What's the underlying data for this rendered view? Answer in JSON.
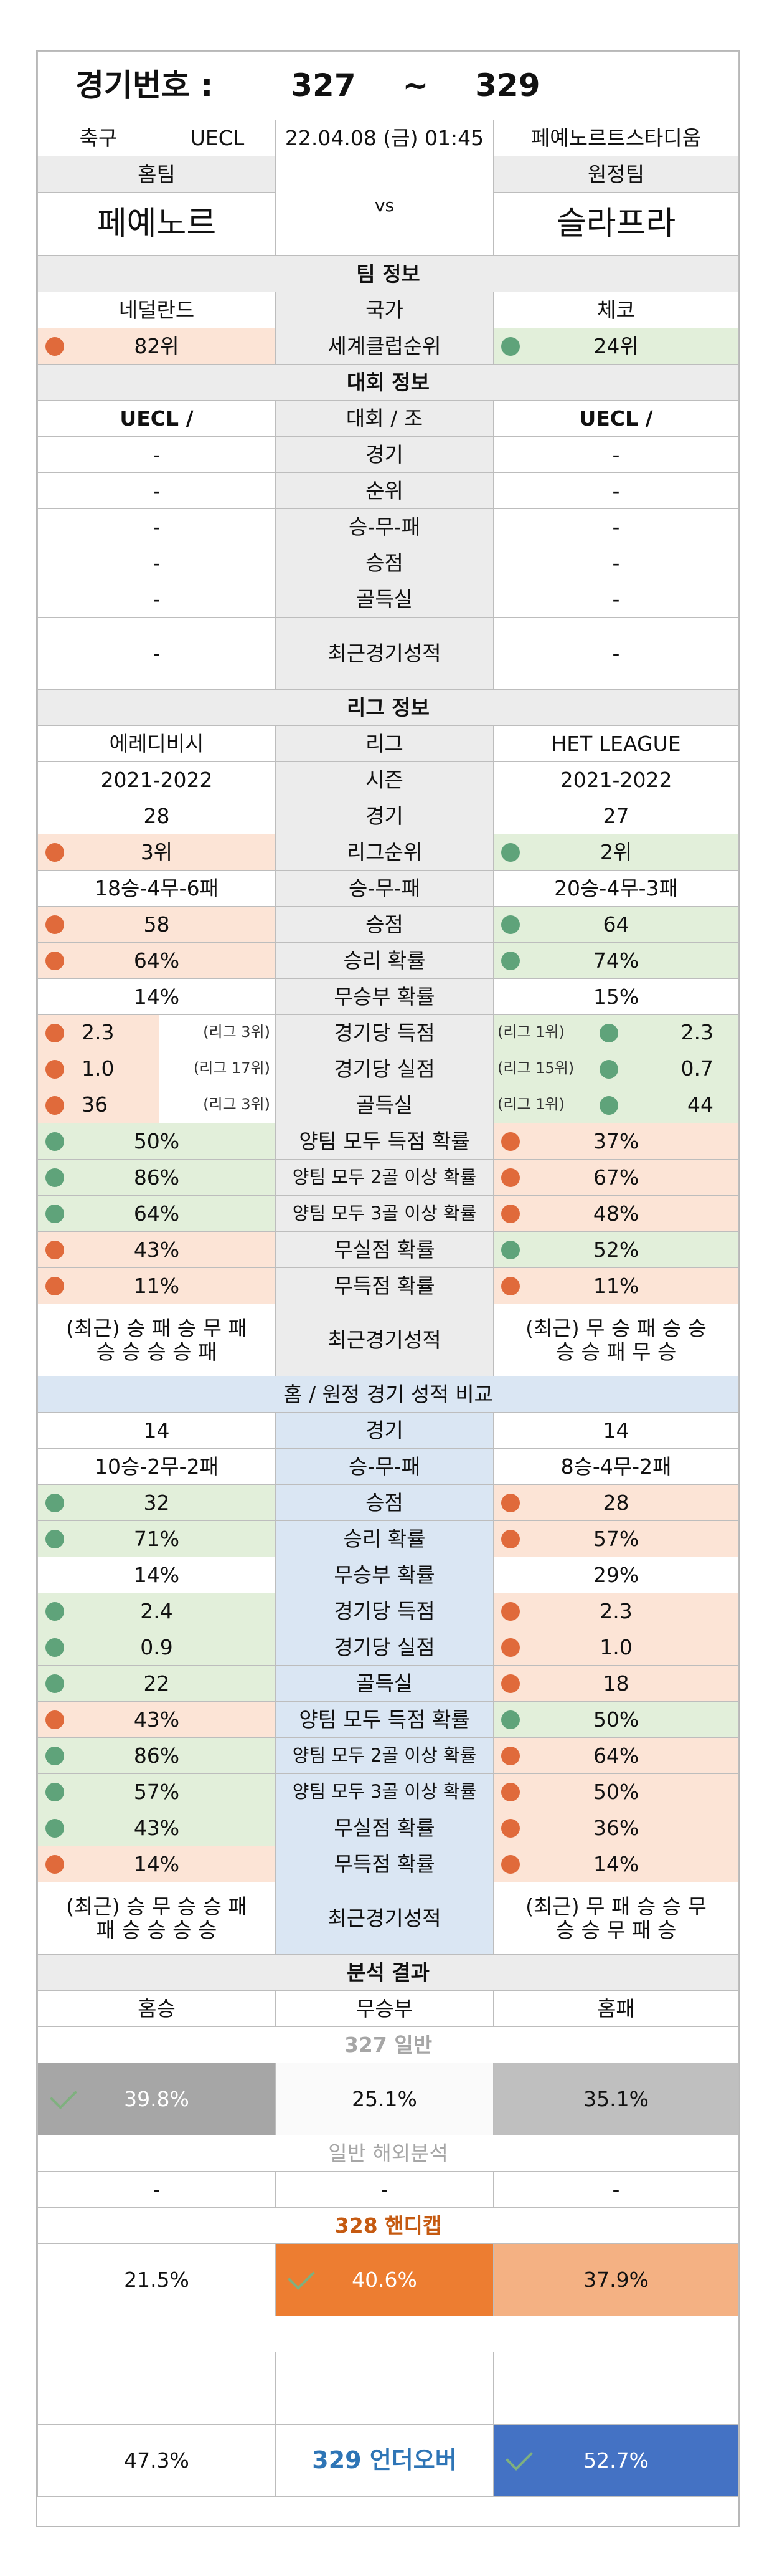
{
  "header": {
    "title_label": "경기번호 :",
    "num_from": "327",
    "tilde": "~",
    "num_to": "329",
    "sport": "축구",
    "league": "UECL",
    "datetime": "22.04.08 (금) 01:45",
    "venue": "페예노르트스타디움",
    "home_label": "홈팀",
    "away_label": "원정팀",
    "vs": "vs",
    "home_team": "페예노르",
    "away_team": "슬라프라"
  },
  "team_info": {
    "section": "팀 정보",
    "home_country": "네덜란드",
    "country_label": "국가",
    "away_country": "체코",
    "home_rank": "82위",
    "rank_label": "세계클럽순위",
    "away_rank": "24위"
  },
  "tournament": {
    "section": "대회 정보",
    "home_name": "UECL /",
    "label": "대회 / 조",
    "away_name": "UECL /",
    "rows": [
      {
        "label": "경기",
        "home": "-",
        "away": "-"
      },
      {
        "label": "순위",
        "home": "-",
        "away": "-"
      },
      {
        "label": "승-무-패",
        "home": "-",
        "away": "-"
      },
      {
        "label": "승점",
        "home": "-",
        "away": "-"
      },
      {
        "label": "골득실",
        "home": "-",
        "away": "-"
      },
      {
        "label": "최근경기성적",
        "home": "-",
        "away": "-"
      }
    ]
  },
  "league": {
    "section": "리그 정보",
    "home_league": "에레디비시",
    "league_label": "리그",
    "away_league": "HET LEAGUE",
    "home_season": "2021-2022",
    "season_label": "시즌",
    "away_season": "2021-2022",
    "home_games": "28",
    "games_label": "경기",
    "away_games": "27",
    "home_rank": "3위",
    "rank_label": "리그순위",
    "away_rank": "2위",
    "home_wdl": "18승-4무-6패",
    "wdl_label": "승-무-패",
    "away_wdl": "20승-4무-3패",
    "points": {
      "home": "58",
      "label": "승점",
      "away": "64"
    },
    "win_rate": {
      "home": "64%",
      "label": "승리 확률",
      "away": "74%"
    },
    "draw_rate": {
      "home": "14%",
      "label": "무승부 확률",
      "away": "15%"
    },
    "goals_for": {
      "home": "2.3",
      "home_rank": "(리그 3위)",
      "label": "경기당 득점",
      "away_rank": "(리그 1위)",
      "away": "2.3"
    },
    "goals_against": {
      "home": "1.0",
      "home_rank": "(리그 17위)",
      "label": "경기당 실점",
      "away_rank": "(리그 15위)",
      "away": "0.7"
    },
    "goal_diff": {
      "home": "36",
      "home_rank": "(리그 3위)",
      "label": "골득실",
      "away_rank": "(리그 1위)",
      "away": "44"
    },
    "btts": {
      "home": "50%",
      "label": "양팀 모두 득점 확률",
      "away": "37%"
    },
    "both2": {
      "home": "86%",
      "label": "양팀 모두 2골 이상 확률",
      "away": "67%"
    },
    "both3": {
      "home": "64%",
      "label": "양팀 모두 3골 이상 확률",
      "away": "48%"
    },
    "clean_sheet": {
      "home": "43%",
      "label": "무실점 확률",
      "away": "52%"
    },
    "no_score": {
      "home": "11%",
      "label": "무득점 확률",
      "away": "11%"
    },
    "recent": {
      "home_l1": "(최근) 승 패 승 무 패",
      "home_l2": "승 승 승 승 패",
      "label": "최근경기성적",
      "away_l1": "(최근) 무 승 패 승 승",
      "away_l2": "승 승 패 무 승"
    }
  },
  "homeaway": {
    "section": "홈 / 원정 경기 성적 비교",
    "games": {
      "home": "14",
      "label": "경기",
      "away": "14"
    },
    "wdl": {
      "home": "10승-2무-2패",
      "label": "승-무-패",
      "away": "8승-4무-2패"
    },
    "points": {
      "home": "32",
      "label": "승점",
      "away": "28"
    },
    "win_rate": {
      "home": "71%",
      "label": "승리 확률",
      "away": "57%"
    },
    "draw_rate": {
      "home": "14%",
      "label": "무승부 확률",
      "away": "29%"
    },
    "goals_for": {
      "home": "2.4",
      "label": "경기당 득점",
      "away": "2.3"
    },
    "goals_against": {
      "home": "0.9",
      "label": "경기당 실점",
      "away": "1.0"
    },
    "goal_diff": {
      "home": "22",
      "label": "골득실",
      "away": "18"
    },
    "btts": {
      "home": "43%",
      "label": "양팀 모두 득점 확률",
      "away": "50%"
    },
    "both2": {
      "home": "86%",
      "label": "양팀 모두 2골 이상 확률",
      "away": "64%"
    },
    "both3": {
      "home": "57%",
      "label": "양팀 모두 3골 이상 확률",
      "away": "50%"
    },
    "clean_sheet": {
      "home": "43%",
      "label": "무실점 확률",
      "away": "36%"
    },
    "no_score": {
      "home": "14%",
      "label": "무득점 확률",
      "away": "14%"
    },
    "recent": {
      "home_l1": "(최근) 승 무 승 승 패",
      "home_l2": "패 승 승 승 승",
      "label": "최근경기성적",
      "away_l1": "(최근) 무 패 승 승 무",
      "away_l2": "승 승 무 패 승"
    }
  },
  "analysis": {
    "section": "분석 결과",
    "col_home": "홈승",
    "col_draw": "무승부",
    "col_away": "홈패",
    "g327_label": "327 일반",
    "g327": {
      "home": "39.8%",
      "draw": "25.1%",
      "away": "35.1%"
    },
    "overseas_label": "일반 해외분석",
    "overseas": {
      "home": "-",
      "draw": "-",
      "away": "-"
    },
    "g328_label": "328 핸디캡",
    "g328": {
      "home": "21.5%",
      "draw": "40.6%",
      "away": "37.9%"
    },
    "g329": {
      "under": "47.3%",
      "label": "329 언더오버",
      "over": "52.7%"
    }
  },
  "colors": {
    "red_dot": "#e06a3b",
    "green_dot": "#5fa37a",
    "red_bg": "#fce4d6",
    "green_bg": "#e2efda",
    "blue_bg": "#dae6f3",
    "gray_cell": "#a6a6a6",
    "orange_cell": "#ed7d31",
    "light_orange_cell": "#f4b183",
    "blue_cell": "#4472c4",
    "section_label_orange": "#c55a11",
    "section_label_blue": "#2e75b6"
  }
}
